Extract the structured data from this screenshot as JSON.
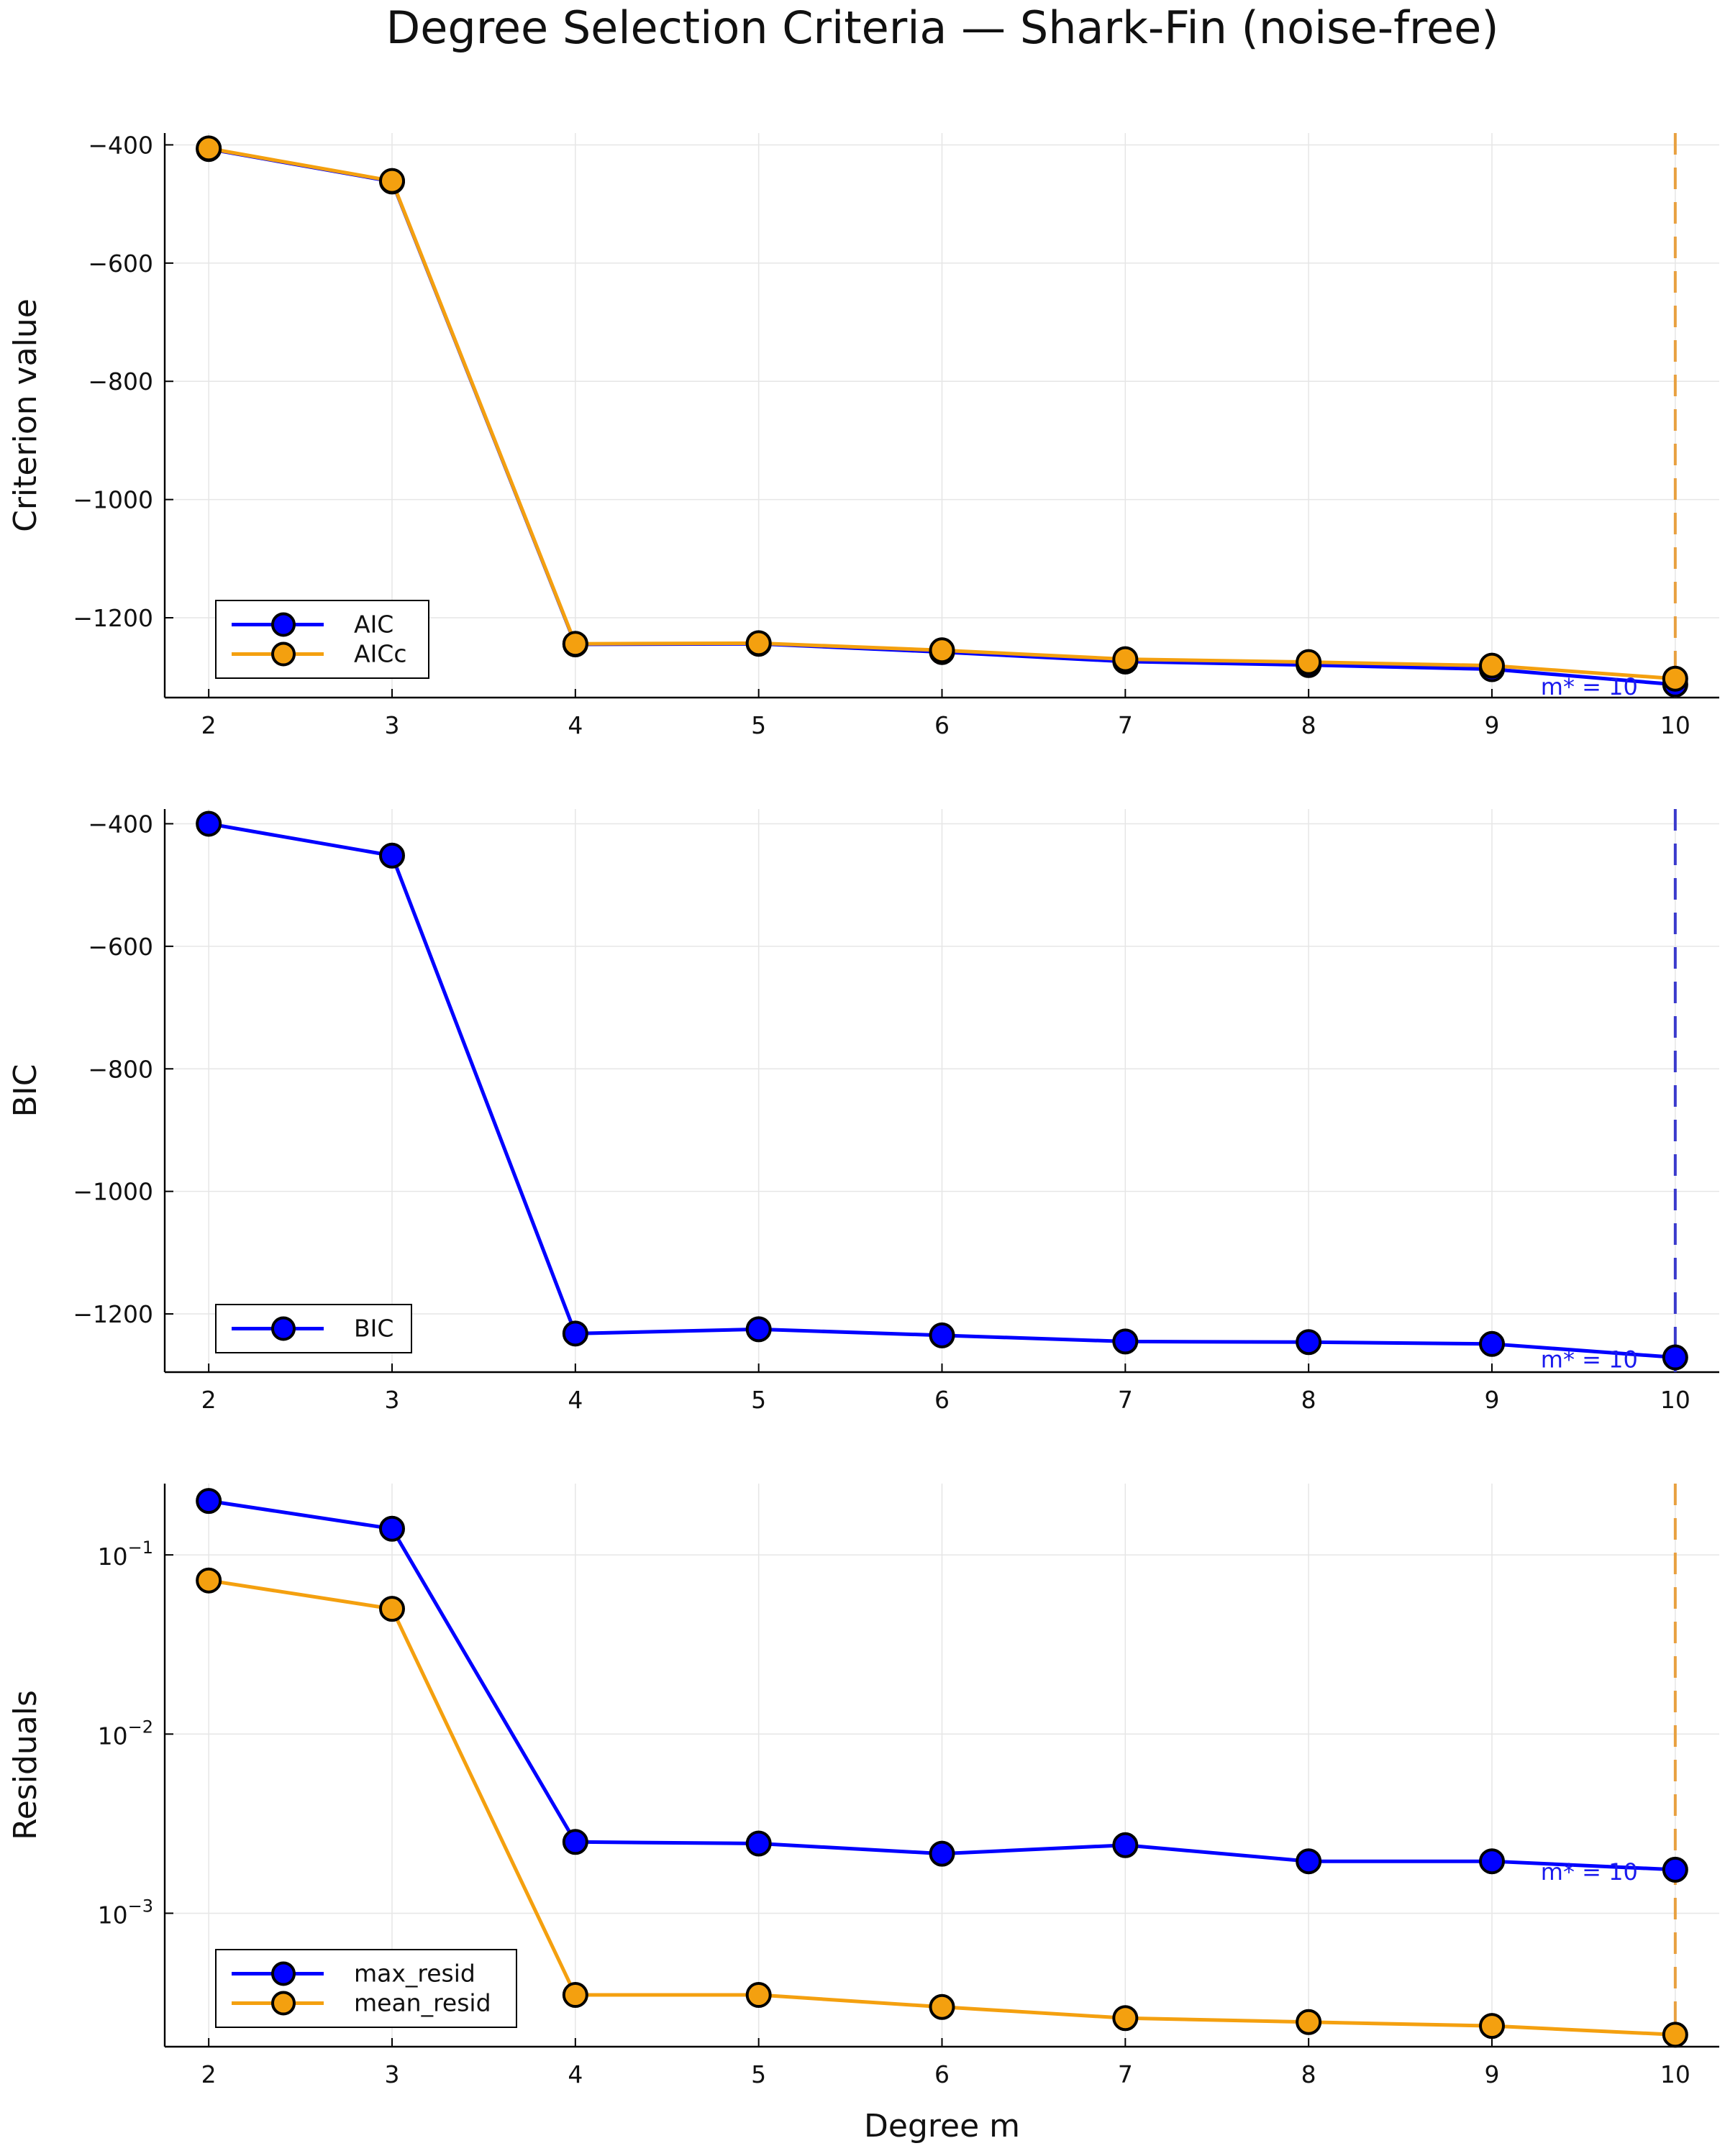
{
  "figure_title": "Degree Selection Criteria — Shark-Fin (noise-free)",
  "colors": {
    "blue": "#0000ff",
    "orange": "#f4a00f",
    "vline_orange": "#e8a040",
    "vline_blue": "#3a3acc",
    "annot_blue": "#1a1aee"
  },
  "chart_data": [
    {
      "type": "line",
      "ylabel": "Criterion value",
      "xlabel": "",
      "x": [
        2,
        3,
        4,
        5,
        6,
        7,
        8,
        9,
        10
      ],
      "xticks": [
        "2",
        "3",
        "4",
        "5",
        "6",
        "7",
        "8",
        "9",
        "10"
      ],
      "ylim": [
        -1335,
        -380
      ],
      "yticks": [
        -400,
        -600,
        -800,
        -1000,
        -1200
      ],
      "yticklabels": [
        "−400",
        "−600",
        "−800",
        "−1000",
        "−1200"
      ],
      "grid": true,
      "legend_position": "bottom-left",
      "series": [
        {
          "name": "AIC",
          "color": "blue",
          "values": [
            -407,
            -462,
            -1245,
            -1244,
            -1258,
            -1274,
            -1280,
            -1287,
            -1313
          ]
        },
        {
          "name": "AICc",
          "color": "orange",
          "values": [
            -406,
            -461,
            -1244,
            -1243,
            -1255,
            -1270,
            -1275,
            -1281,
            -1303
          ]
        }
      ],
      "vline": {
        "x": 10,
        "color": "vline_orange"
      },
      "annotation": {
        "text": "m* = 10",
        "x": 10,
        "y": -1313
      }
    },
    {
      "type": "line",
      "ylabel": "BIC",
      "xlabel": "",
      "x": [
        2,
        3,
        4,
        5,
        6,
        7,
        8,
        9,
        10
      ],
      "xticks": [
        "2",
        "3",
        "4",
        "5",
        "6",
        "7",
        "8",
        "9",
        "10"
      ],
      "ylim": [
        -1295,
        -376
      ],
      "yticks": [
        -400,
        -600,
        -800,
        -1000,
        -1200
      ],
      "yticklabels": [
        "−400",
        "−600",
        "−800",
        "−1000",
        "−1200"
      ],
      "grid": true,
      "legend_position": "bottom-left",
      "series": [
        {
          "name": "BIC",
          "color": "blue",
          "values": [
            -400,
            -452,
            -1232,
            -1225,
            -1235,
            -1245,
            -1246,
            -1249,
            -1271
          ]
        }
      ],
      "vline": {
        "x": 10,
        "color": "vline_blue"
      },
      "annotation": {
        "text": "m* = 10",
        "x": 10,
        "y": -1271
      }
    },
    {
      "type": "line",
      "ylabel": "Residuals",
      "xlabel": "Degree m",
      "x": [
        2,
        3,
        4,
        5,
        6,
        7,
        8,
        9,
        10
      ],
      "xticks": [
        "2",
        "3",
        "4",
        "5",
        "6",
        "7",
        "8",
        "9",
        "10"
      ],
      "yscale": "log",
      "ylim": [
        0.00018,
        0.25
      ],
      "yticks": [
        0.1,
        0.01,
        0.001
      ],
      "yticklabels": [
        {
          "base": "10",
          "exp": "−1"
        },
        {
          "base": "10",
          "exp": "−2"
        },
        {
          "base": "10",
          "exp": "−3"
        }
      ],
      "grid": true,
      "legend_position": "bottom-left",
      "series": [
        {
          "name": "max_resid",
          "color": "blue",
          "values": [
            0.2,
            0.14,
            0.0025,
            0.00245,
            0.00215,
            0.0024,
            0.00195,
            0.00195,
            0.00175
          ]
        },
        {
          "name": "mean_resid",
          "color": "orange",
          "values": [
            0.072,
            0.05,
            0.00035,
            0.00035,
            0.0003,
            0.00026,
            0.000247,
            0.000235,
            0.00021
          ]
        }
      ],
      "vline": {
        "x": 10,
        "color": "vline_orange"
      },
      "annotation": {
        "text": "m* = 10",
        "x": 10,
        "y": 0.00175
      }
    }
  ]
}
